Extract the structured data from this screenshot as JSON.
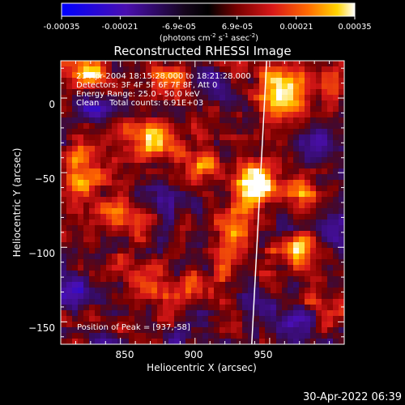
{
  "colorbar": {
    "ticks": [
      "-0.00035",
      "-0.00021",
      "-6.9e-05",
      "6.9e-05",
      "0.00021",
      "0.00035"
    ],
    "unit_label": "(photons cm",
    "unit_sup1": "-2",
    "unit_mid1": " s",
    "unit_sup2": "-1",
    "unit_mid2": " asec",
    "unit_sup3": "-2",
    "unit_end": ")"
  },
  "plot": {
    "title": "Reconstructed RHESSI Image",
    "xlabel": "Heliocentric X (arcsec)",
    "ylabel": "Heliocentric Y (arcsec)",
    "x_ticks": [
      "850",
      "900",
      "950"
    ],
    "y_ticks": [
      "0",
      "−50",
      "−100",
      "−150"
    ],
    "annotations": {
      "line1": "21-Apr-2004 18:15:28.000 to 18:21:28.000",
      "line2": "Detectors: 3F 4F 5F 6F 7F 8F, Att 0",
      "line3": "Energy Range: 25.0 - 50.0 keV",
      "line4": "Clean    Total counts: 6.91E+03"
    },
    "peak_label": "Position of Peak = [937,-58]"
  },
  "timestamp": "30-Apr-2022 06:39",
  "chart_data": {
    "type": "heatmap",
    "title": "Reconstructed RHESSI Image",
    "xlabel": "Heliocentric X (arcsec)",
    "ylabel": "Heliocentric Y (arcsec)",
    "xlim": [
      810,
      1000
    ],
    "ylim": [
      -165,
      25
    ],
    "x_ticks": [
      850,
      900,
      950
    ],
    "y_ticks": [
      0,
      -50,
      -100,
      -150
    ],
    "colorbar_range": [
      -0.00035,
      0.00035
    ],
    "colorbar_ticks": [
      -0.00035,
      -0.00021,
      -6.9e-05,
      6.9e-05,
      0.00021,
      0.00035
    ],
    "colormap": [
      "#0000ff",
      "#4a0fb0",
      "#2a0a3a",
      "#000000",
      "#7a0000",
      "#d81818",
      "#ff6a00",
      "#ffd400",
      "#ffffff"
    ],
    "peak": [
      937,
      -58
    ],
    "limb_line": [
      [
        948,
        25
      ],
      [
        938,
        -165
      ]
    ],
    "hotspots": [
      {
        "x": 942,
        "y": -58,
        "v": 1.0
      },
      {
        "x": 958,
        "y": 5,
        "v": 0.9
      },
      {
        "x": 828,
        "y": 15,
        "v": 0.75
      },
      {
        "x": 872,
        "y": -30,
        "v": 0.75
      },
      {
        "x": 880,
        "y": 12,
        "v": 0.6
      },
      {
        "x": 822,
        "y": -50,
        "v": 0.7
      },
      {
        "x": 848,
        "y": -80,
        "v": 0.65
      },
      {
        "x": 925,
        "y": -85,
        "v": 0.55
      },
      {
        "x": 970,
        "y": -100,
        "v": 0.7
      },
      {
        "x": 975,
        "y": -65,
        "v": 0.45
      },
      {
        "x": 905,
        "y": -45,
        "v": 0.5
      },
      {
        "x": 895,
        "y": -130,
        "v": 0.55
      },
      {
        "x": 865,
        "y": -125,
        "v": 0.5
      },
      {
        "x": 920,
        "y": -110,
        "v": 0.4
      },
      {
        "x": 990,
        "y": 10,
        "v": 0.4
      },
      {
        "x": 985,
        "y": -140,
        "v": 0.45
      }
    ],
    "coldspots": [
      {
        "x": 980,
        "y": -30,
        "v": -0.5
      },
      {
        "x": 990,
        "y": -90,
        "v": -0.6
      },
      {
        "x": 970,
        "y": -150,
        "v": -0.7
      },
      {
        "x": 822,
        "y": -130,
        "v": -0.5
      },
      {
        "x": 900,
        "y": -150,
        "v": -0.45
      },
      {
        "x": 835,
        "y": -5,
        "v": -0.4
      },
      {
        "x": 880,
        "y": -70,
        "v": -0.45
      },
      {
        "x": 945,
        "y": -140,
        "v": -0.4
      },
      {
        "x": 905,
        "y": 15,
        "v": -0.35
      },
      {
        "x": 960,
        "y": -80,
        "v": -0.35
      }
    ]
  }
}
